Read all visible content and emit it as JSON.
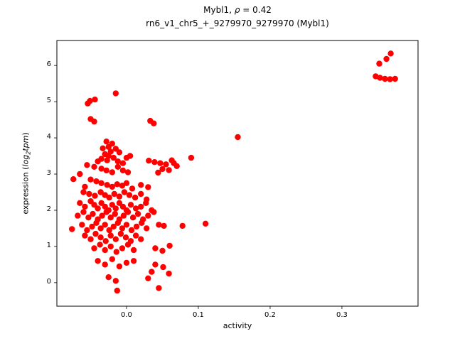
{
  "figure": {
    "title_line1": {
      "prefix": "Mybl1, ",
      "rho": "ρ",
      "suffix": " = 0.42"
    },
    "title_line2": "rn6_v1_chr5_+_9279970_9279970 (Mybl1)",
    "xlabel": "activity",
    "ylabel": {
      "prefix": "expression (",
      "log": "log",
      "sub": "2",
      "word": "tpm",
      "suffix": ")"
    }
  },
  "chart_data": {
    "type": "scatter",
    "title": "Mybl1, ρ = 0.42",
    "subtitle": "rn6_v1_chr5_+_9279970_9279970 (Mybl1)",
    "xlabel": "activity",
    "ylabel": "expression (log2 tpm)",
    "legend": "none",
    "grid": false,
    "marker_color": "#ff0000",
    "xlim": [
      -0.097,
      0.406
    ],
    "ylim": [
      -0.65,
      6.69
    ],
    "xticks": {
      "values": [
        0.0,
        0.1,
        0.2,
        0.3
      ],
      "labels": [
        "0.0",
        "0.1",
        "0.2",
        "0.3"
      ]
    },
    "yticks": {
      "values": [
        0,
        1,
        2,
        3,
        4,
        5,
        6
      ],
      "labels": [
        "0",
        "1",
        "2",
        "3",
        "4",
        "5",
        "6"
      ]
    },
    "points": [
      [
        0.352,
        6.05
      ],
      [
        0.362,
        6.18
      ],
      [
        0.368,
        6.33
      ],
      [
        0.347,
        5.7
      ],
      [
        0.353,
        5.66
      ],
      [
        0.36,
        5.63
      ],
      [
        0.367,
        5.62
      ],
      [
        0.374,
        5.63
      ],
      [
        0.155,
        4.02
      ],
      [
        0.11,
        1.63
      ],
      [
        0.09,
        3.45
      ],
      [
        -0.051,
        5.02
      ],
      [
        -0.044,
        5.06
      ],
      [
        -0.054,
        4.95
      ],
      [
        -0.015,
        5.23
      ],
      [
        -0.05,
        4.52
      ],
      [
        -0.045,
        4.45
      ],
      [
        0.033,
        4.47
      ],
      [
        0.038,
        4.4
      ],
      [
        0.031,
        3.37
      ],
      [
        0.039,
        3.33
      ],
      [
        0.047,
        3.3
      ],
      [
        0.055,
        3.27
      ],
      [
        0.05,
        3.14
      ],
      [
        0.059,
        3.11
      ],
      [
        0.066,
        3.3
      ],
      [
        0.044,
        3.04
      ],
      [
        0.07,
        3.22
      ],
      [
        0.063,
        3.38
      ],
      [
        -0.028,
        3.9
      ],
      [
        -0.02,
        3.84
      ],
      [
        -0.025,
        3.75
      ],
      [
        -0.033,
        3.71
      ],
      [
        -0.015,
        3.7
      ],
      [
        -0.022,
        3.62
      ],
      [
        -0.01,
        3.6
      ],
      [
        -0.03,
        3.55
      ],
      [
        -0.025,
        3.5
      ],
      [
        -0.018,
        3.45
      ],
      [
        -0.035,
        3.42
      ],
      [
        -0.027,
        3.38
      ],
      [
        -0.04,
        3.35
      ],
      [
        -0.012,
        3.35
      ],
      [
        -0.005,
        3.3
      ],
      [
        0.0,
        3.45
      ],
      [
        0.005,
        3.5
      ],
      [
        -0.055,
        3.25
      ],
      [
        -0.045,
        3.2
      ],
      [
        -0.035,
        3.15
      ],
      [
        -0.028,
        3.1
      ],
      [
        -0.02,
        3.05
      ],
      [
        -0.012,
        3.2
      ],
      [
        -0.005,
        3.1
      ],
      [
        0.002,
        3.05
      ],
      [
        -0.065,
        3.0
      ],
      [
        -0.074,
        2.86
      ],
      [
        -0.05,
        2.85
      ],
      [
        -0.042,
        2.8
      ],
      [
        -0.035,
        2.75
      ],
      [
        -0.027,
        2.7
      ],
      [
        -0.02,
        2.65
      ],
      [
        -0.013,
        2.72
      ],
      [
        -0.006,
        2.68
      ],
      [
        0.0,
        2.75
      ],
      [
        0.008,
        2.6
      ],
      [
        -0.058,
        2.65
      ],
      [
        0.02,
        2.7
      ],
      [
        0.03,
        2.64
      ],
      [
        -0.06,
        2.5
      ],
      [
        -0.052,
        2.45
      ],
      [
        -0.044,
        2.4
      ],
      [
        -0.036,
        2.5
      ],
      [
        -0.03,
        2.42
      ],
      [
        -0.024,
        2.35
      ],
      [
        -0.017,
        2.45
      ],
      [
        -0.01,
        2.38
      ],
      [
        -0.003,
        2.5
      ],
      [
        0.004,
        2.42
      ],
      [
        0.012,
        2.35
      ],
      [
        0.02,
        2.45
      ],
      [
        0.028,
        2.3
      ],
      [
        -0.065,
        2.2
      ],
      [
        -0.058,
        2.1
      ],
      [
        -0.05,
        2.25
      ],
      [
        -0.045,
        2.15
      ],
      [
        -0.04,
        2.05
      ],
      [
        -0.035,
        2.2
      ],
      [
        -0.03,
        2.1
      ],
      [
        -0.025,
        2.0
      ],
      [
        -0.02,
        2.15
      ],
      [
        -0.015,
        2.05
      ],
      [
        -0.01,
        2.2
      ],
      [
        -0.005,
        2.1
      ],
      [
        0.0,
        2.0
      ],
      [
        0.006,
        2.15
      ],
      [
        0.013,
        2.05
      ],
      [
        0.02,
        2.1
      ],
      [
        0.027,
        2.2
      ],
      [
        0.035,
        2.0
      ],
      [
        -0.068,
        1.85
      ],
      [
        -0.06,
        1.95
      ],
      [
        -0.053,
        1.8
      ],
      [
        -0.047,
        1.9
      ],
      [
        -0.04,
        1.75
      ],
      [
        -0.034,
        1.85
      ],
      [
        -0.028,
        1.95
      ],
      [
        -0.022,
        1.8
      ],
      [
        -0.016,
        1.9
      ],
      [
        -0.01,
        1.75
      ],
      [
        -0.004,
        1.85
      ],
      [
        0.002,
        1.95
      ],
      [
        0.009,
        1.8
      ],
      [
        0.016,
        1.9
      ],
      [
        0.023,
        1.75
      ],
      [
        0.03,
        1.85
      ],
      [
        0.038,
        1.95
      ],
      [
        -0.076,
        1.48
      ],
      [
        -0.062,
        1.6
      ],
      [
        -0.055,
        1.45
      ],
      [
        -0.048,
        1.55
      ],
      [
        -0.042,
        1.65
      ],
      [
        -0.036,
        1.5
      ],
      [
        -0.03,
        1.6
      ],
      [
        -0.024,
        1.45
      ],
      [
        -0.018,
        1.55
      ],
      [
        -0.012,
        1.65
      ],
      [
        -0.006,
        1.5
      ],
      [
        0.0,
        1.6
      ],
      [
        0.007,
        1.45
      ],
      [
        0.014,
        1.55
      ],
      [
        0.021,
        1.65
      ],
      [
        0.028,
        1.5
      ],
      [
        0.045,
        1.6
      ],
      [
        0.052,
        1.57
      ],
      [
        0.078,
        1.57
      ],
      [
        -0.058,
        1.3
      ],
      [
        -0.05,
        1.2
      ],
      [
        -0.043,
        1.35
      ],
      [
        -0.036,
        1.25
      ],
      [
        -0.029,
        1.15
      ],
      [
        -0.022,
        1.3
      ],
      [
        -0.015,
        1.2
      ],
      [
        -0.008,
        1.35
      ],
      [
        -0.001,
        1.25
      ],
      [
        0.006,
        1.15
      ],
      [
        0.013,
        1.3
      ],
      [
        0.02,
        1.2
      ],
      [
        -0.045,
        0.95
      ],
      [
        -0.037,
        1.05
      ],
      [
        -0.03,
        0.9
      ],
      [
        -0.022,
        1.0
      ],
      [
        -0.014,
        0.85
      ],
      [
        -0.006,
        0.95
      ],
      [
        0.002,
        1.05
      ],
      [
        0.01,
        0.9
      ],
      [
        0.04,
        0.95
      ],
      [
        0.05,
        0.88
      ],
      [
        0.06,
        1.02
      ],
      [
        -0.04,
        0.6
      ],
      [
        -0.03,
        0.5
      ],
      [
        -0.02,
        0.65
      ],
      [
        -0.01,
        0.45
      ],
      [
        0.0,
        0.55
      ],
      [
        0.01,
        0.6
      ],
      [
        0.04,
        0.5
      ],
      [
        0.051,
        0.43
      ],
      [
        -0.025,
        0.15
      ],
      [
        -0.015,
        0.05
      ],
      [
        0.03,
        0.12
      ],
      [
        0.035,
        0.3
      ],
      [
        0.059,
        0.25
      ],
      [
        0.045,
        -0.15
      ],
      [
        -0.013,
        -0.22
      ]
    ]
  }
}
